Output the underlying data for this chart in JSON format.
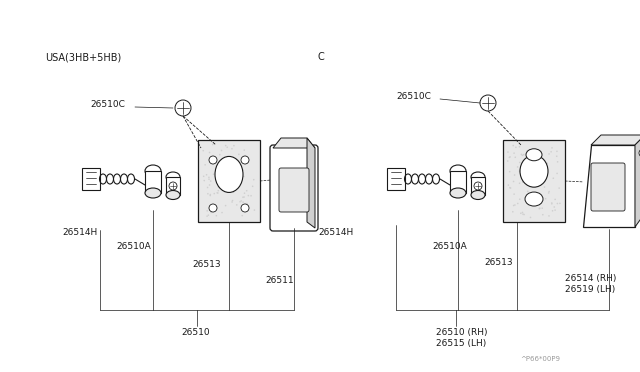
{
  "bg_color": "#ffffff",
  "line_color": "#1a1a1a",
  "fig_width": 6.4,
  "fig_height": 3.72,
  "dpi": 100,
  "title_left": "USA(3HB+5HB)",
  "title_right": "C",
  "watermark": "^P66*00P9",
  "gray_dot": "#cccccc",
  "light_gray": "#e8e8e8",
  "mid_gray": "#d0d0d0"
}
